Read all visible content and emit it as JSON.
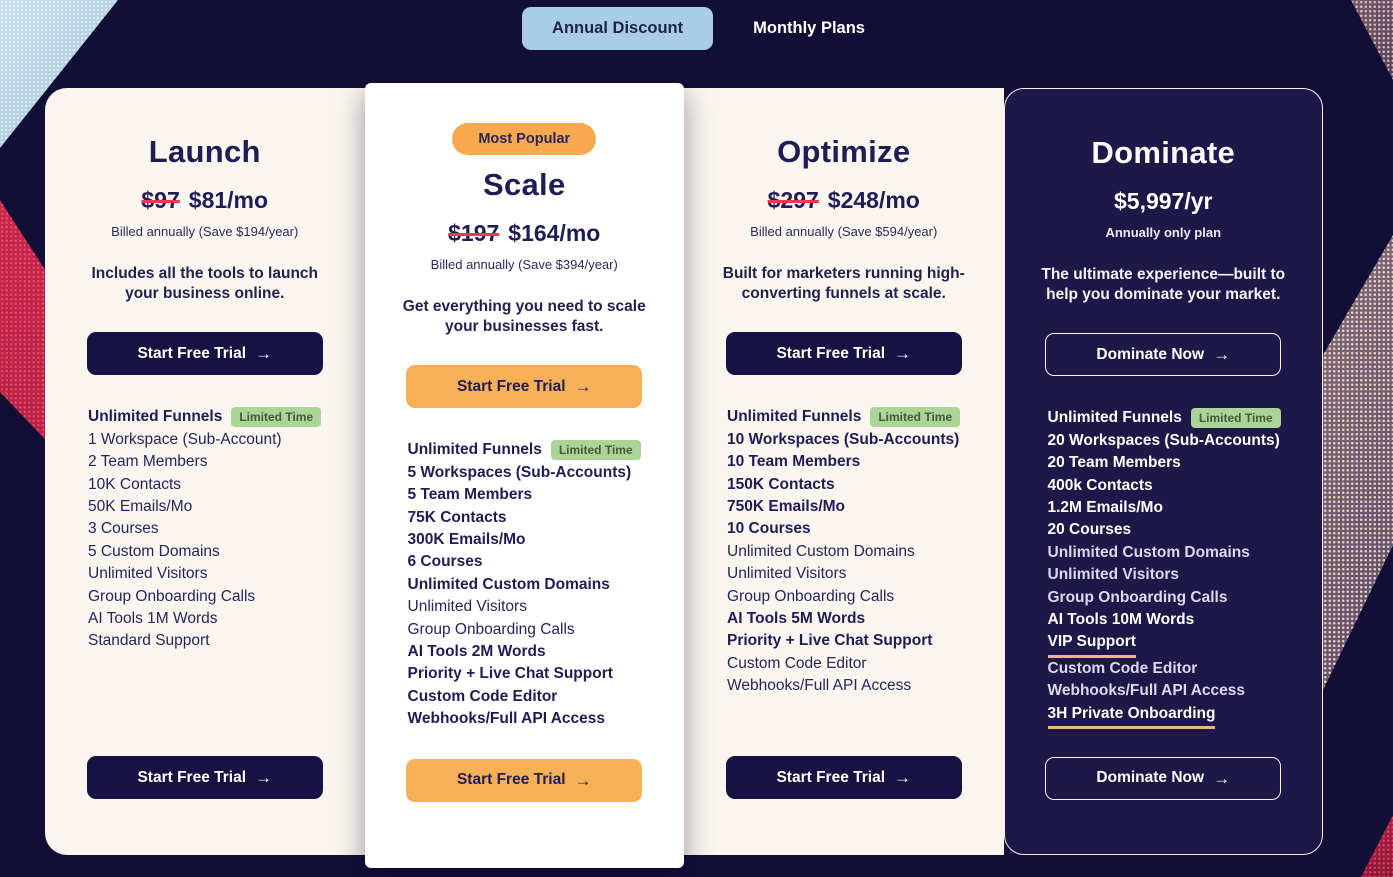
{
  "toggle": {
    "annual_label": "Annual Discount",
    "monthly_label": "Monthly Plans"
  },
  "icons": {
    "arrow_right": "→"
  },
  "colors": {
    "page_background": "#130e36",
    "card_cream": "#faf5ef",
    "card_white": "#ffffff",
    "card_dark": "#1d1847",
    "navy_text": "#201c55",
    "cta_navy": "#171144",
    "cta_orange": "#f8b057",
    "toggle_blue": "#a9cde4",
    "popular_badge_orange": "#f6a94e",
    "limited_time_green": "#abd596",
    "strike_red": "#e8394e",
    "underline_orange": "#f2b482",
    "deco_red": "#d42950",
    "deco_pink": "#e2beaf",
    "deco_blue": "#b5d4e5"
  },
  "plans": [
    {
      "name": "Launch",
      "style": "cream",
      "badge": null,
      "old_price": "$97",
      "price": "$81/mo",
      "billing_note": "Billed annually (Save $194/year)",
      "description": "Includes all the tools to launch your business online.",
      "cta_label": "Start Free Trial",
      "cta_style": "navy",
      "features": [
        {
          "text": "Unlimited Funnels",
          "bold": true,
          "badge": "Limited Time"
        },
        {
          "text": "1 Workspace (Sub-Account)"
        },
        {
          "text": "2 Team Members"
        },
        {
          "text": "10K Contacts"
        },
        {
          "text": "50K Emails/Mo"
        },
        {
          "text": "3 Courses"
        },
        {
          "text": "5 Custom Domains"
        },
        {
          "text": "Unlimited Visitors"
        },
        {
          "text": "Group Onboarding Calls"
        },
        {
          "text": "AI Tools 1M Words"
        },
        {
          "text": "Standard Support"
        }
      ]
    },
    {
      "name": "Scale",
      "style": "white",
      "badge": "Most Popular",
      "old_price": "$197",
      "price": "$164/mo",
      "billing_note": "Billed annually (Save $394/year)",
      "description": "Get everything you need to scale your businesses fast.",
      "cta_label": "Start Free Trial",
      "cta_style": "orange",
      "features": [
        {
          "text": "Unlimited Funnels",
          "bold": true,
          "badge": "Limited Time"
        },
        {
          "text": "5 Workspaces (Sub-Accounts)",
          "bold": true
        },
        {
          "text": "5 Team Members",
          "bold": true
        },
        {
          "text": "75K Contacts",
          "bold": true
        },
        {
          "text": "300K Emails/Mo",
          "bold": true
        },
        {
          "text": "6 Courses",
          "bold": true
        },
        {
          "text": "Unlimited Custom Domains",
          "bold": true
        },
        {
          "text": "Unlimited Visitors"
        },
        {
          "text": "Group Onboarding Calls"
        },
        {
          "text": "AI Tools 2M Words",
          "bold": true
        },
        {
          "text": "Priority + Live Chat Support",
          "bold": true
        },
        {
          "text": "Custom Code Editor",
          "bold": true
        },
        {
          "text": "Webhooks/Full API Access",
          "bold": true
        }
      ]
    },
    {
      "name": "Optimize",
      "style": "cream",
      "badge": null,
      "old_price": "$297",
      "price": "$248/mo",
      "billing_note": "Billed annually (Save $594/year)",
      "description": "Built for marketers running high-converting funnels at scale.",
      "cta_label": "Start Free Trial",
      "cta_style": "navy",
      "features": [
        {
          "text": "Unlimited Funnels",
          "bold": true,
          "badge": "Limited Time"
        },
        {
          "text": "10 Workspaces (Sub-Accounts)",
          "bold": true
        },
        {
          "text": "10 Team Members",
          "bold": true
        },
        {
          "text": "150K Contacts",
          "bold": true
        },
        {
          "text": "750K Emails/Mo",
          "bold": true
        },
        {
          "text": "10 Courses",
          "bold": true
        },
        {
          "text": "Unlimited Custom Domains"
        },
        {
          "text": "Unlimited Visitors"
        },
        {
          "text": "Group Onboarding Calls"
        },
        {
          "text": "AI Tools 5M Words",
          "bold": true
        },
        {
          "text": "Priority + Live Chat Support",
          "bold": true
        },
        {
          "text": "Custom Code Editor"
        },
        {
          "text": "Webhooks/Full API Access"
        }
      ]
    },
    {
      "name": "Dominate",
      "style": "dark",
      "badge": null,
      "old_price": null,
      "price": "$5,997/yr",
      "billing_note": "Annually only plan",
      "description": "The ultimate experience—built to help you dominate your market.",
      "cta_label": "Dominate Now",
      "cta_style": "outline",
      "features": [
        {
          "text": "Unlimited Funnels",
          "bold": true,
          "badge": "Limited Time"
        },
        {
          "text": "20 Workspaces (Sub-Accounts)",
          "bold": true
        },
        {
          "text": "20 Team Members",
          "bold": true
        },
        {
          "text": "400k Contacts",
          "bold": true
        },
        {
          "text": "1.2M Emails/Mo",
          "bold": true
        },
        {
          "text": "20 Courses",
          "bold": true
        },
        {
          "text": "Unlimited Custom Domains"
        },
        {
          "text": "Unlimited Visitors"
        },
        {
          "text": "Group Onboarding Calls"
        },
        {
          "text": "AI Tools 10M Words",
          "bold": true
        },
        {
          "text": "VIP Support",
          "bold": true,
          "underline": true
        },
        {
          "text": "Custom Code Editor"
        },
        {
          "text": "Webhooks/Full API Access"
        },
        {
          "text": "3H Private Onboarding",
          "bold": true,
          "underline": true
        }
      ]
    }
  ]
}
